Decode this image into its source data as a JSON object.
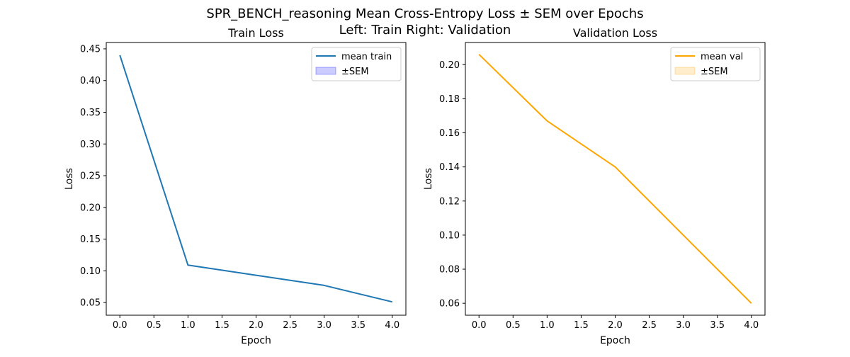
{
  "figure": {
    "suptitle_line1": "SPR_BENCH_reasoning Mean Cross-Entropy Loss ± SEM over Epochs",
    "suptitle_line2": "Left: Train  Right: Validation"
  },
  "chart_data": [
    {
      "type": "line",
      "title": "Train Loss",
      "xlabel": "Epoch",
      "ylabel": "Loss",
      "x": [
        0,
        1,
        2,
        3,
        4
      ],
      "xlim": [
        -0.2,
        4.2
      ],
      "ylim": [
        0.03,
        0.46
      ],
      "xticks": [
        "0.0",
        "0.5",
        "1.0",
        "1.5",
        "2.0",
        "2.5",
        "3.0",
        "3.5",
        "4.0"
      ],
      "yticks": [
        "0.05",
        "0.10",
        "0.15",
        "0.20",
        "0.25",
        "0.30",
        "0.35",
        "0.40",
        "0.45"
      ],
      "series": [
        {
          "name": "mean train",
          "values": [
            0.44,
            0.109,
            0.093,
            0.077,
            0.051
          ],
          "color": "#1f77b4"
        }
      ],
      "legend": {
        "placement": "top-right",
        "entries": [
          "mean train",
          "±SEM"
        ],
        "sem_color": "#0000ff"
      }
    },
    {
      "type": "line",
      "title": "Validation Loss",
      "xlabel": "Epoch",
      "ylabel": "Loss",
      "x": [
        0,
        1,
        2,
        3,
        4
      ],
      "xlim": [
        -0.2,
        4.2
      ],
      "ylim": [
        0.053,
        0.213
      ],
      "xticks": [
        "0.0",
        "0.5",
        "1.0",
        "1.5",
        "2.0",
        "2.5",
        "3.0",
        "3.5",
        "4.0"
      ],
      "yticks": [
        "0.06",
        "0.08",
        "0.10",
        "0.12",
        "0.14",
        "0.16",
        "0.18",
        "0.20"
      ],
      "series": [
        {
          "name": "mean val",
          "values": [
            0.206,
            0.167,
            0.14,
            0.1,
            0.06
          ],
          "color": "#ffa500"
        }
      ],
      "legend": {
        "placement": "top-right",
        "entries": [
          "mean val",
          "±SEM"
        ],
        "sem_color": "#ffa500"
      }
    }
  ]
}
